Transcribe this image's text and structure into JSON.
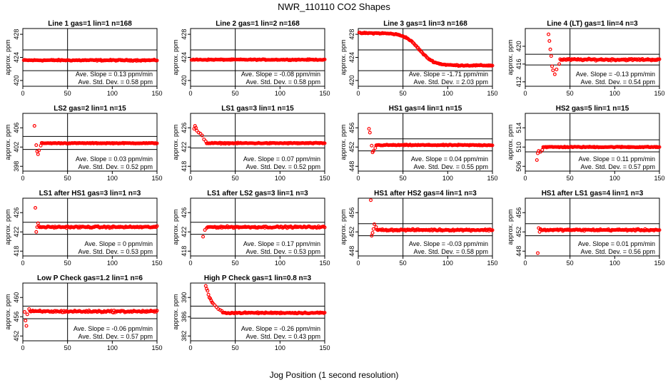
{
  "figure": {
    "title": "NWR_110110  CO2 Shapes",
    "xlabel": "Jog Position (1 second resolution)"
  },
  "chart_data": [
    {
      "type": "scatter",
      "title": "Line 1 gas=1 lin=1 n=168",
      "ylabel": "approx. ppm",
      "xlim": [
        0,
        150
      ],
      "ylim": [
        419,
        429
      ],
      "yticks": [
        420,
        424,
        428
      ],
      "xticks": [
        0,
        50,
        100,
        150
      ],
      "hlines": [
        425.3,
        421.7
      ],
      "vline": 50,
      "slope_label": "Ave. Slope =",
      "slope": "0.13",
      "slope_units": "ppm/min",
      "sd_label": "Ave. Std. Dev. =",
      "sd": "0.58",
      "sd_units": "ppm",
      "shape": {
        "kind": "flat",
        "start": 1,
        "level": 423.5,
        "noise": 0.15
      }
    },
    {
      "type": "scatter",
      "title": "Line 2 gas=1 lin=2 n=168",
      "ylabel": "approx. ppm",
      "xlim": [
        0,
        150
      ],
      "ylim": [
        419,
        429
      ],
      "yticks": [
        420,
        424,
        428
      ],
      "xticks": [
        0,
        50,
        100,
        150
      ],
      "hlines": [
        425.3,
        421.7
      ],
      "vline": 50,
      "slope_label": "Ave. Slope =",
      "slope": "-0.08",
      "slope_units": "ppm/min",
      "sd_label": "Ave. Std. Dev. =",
      "sd": "0.58",
      "sd_units": "ppm",
      "shape": {
        "kind": "flat",
        "start": 1,
        "level": 423.6,
        "noise": 0.12
      }
    },
    {
      "type": "scatter",
      "title": "Line 3 gas=1 lin=3 n=168",
      "ylabel": "approx. ppm",
      "xlim": [
        0,
        150
      ],
      "ylim": [
        419,
        429
      ],
      "yticks": [
        420,
        424,
        428
      ],
      "xticks": [
        0,
        50,
        100,
        150
      ],
      "hlines": [
        425.3,
        421.7
      ],
      "vline": 50,
      "slope_label": "Ave. Slope =",
      "slope": "-1.71",
      "slope_units": "ppm/min",
      "sd_label": "Ave. Std. Dev. =",
      "sd": "2.03",
      "sd_units": "ppm",
      "shape": {
        "kind": "sigmoid",
        "start": 1,
        "high": 428.2,
        "low": 422.6,
        "mid": 68,
        "width": 8,
        "noise": 0.15
      }
    },
    {
      "type": "scatter",
      "title": "Line 4 (LT) gas=1 lin=4 n=3",
      "ylabel": "approx. ppm",
      "xlim": [
        0,
        150
      ],
      "ylim": [
        411,
        424
      ],
      "yticks": [
        412,
        416,
        420
      ],
      "xticks": [
        0,
        50,
        100,
        150
      ],
      "hlines": [
        418.2,
        415.8
      ],
      "vline": 50,
      "slope_label": "Ave. Slope =",
      "slope": "-0.13",
      "slope_units": "ppm/min",
      "sd_label": "Ave. Std. Dev. =",
      "sd": "0.54",
      "sd_units": "ppm",
      "shape": {
        "kind": "spike",
        "start": 26,
        "level": 417.0,
        "noise": 0.3,
        "spike": [
          [
            26,
            422.7
          ],
          [
            27,
            421.2
          ],
          [
            28,
            419.3
          ],
          [
            29,
            417.8
          ],
          [
            30,
            415.5
          ],
          [
            31,
            414.6
          ],
          [
            33,
            413.7
          ],
          [
            35,
            414.8
          ],
          [
            38,
            416.0
          ]
        ]
      }
    },
    {
      "type": "scatter",
      "title": "LS2 gas=2 lin=1 n=15",
      "ylabel": "approx. ppm",
      "xlim": [
        0,
        150
      ],
      "ylim": [
        397,
        409
      ],
      "yticks": [
        398,
        402,
        406
      ],
      "xticks": [
        0,
        50,
        100,
        150
      ],
      "hlines": [
        404.2,
        401.5
      ],
      "vline": 50,
      "slope_label": "Ave. Slope =",
      "slope": "0.03",
      "slope_units": "ppm/min",
      "sd_label": "Ave. Std. Dev. =",
      "sd": "0.52",
      "sd_units": "ppm",
      "shape": {
        "kind": "spike",
        "start": 13,
        "level": 402.8,
        "noise": 0.12,
        "spike": [
          [
            13,
            406.4
          ],
          [
            15,
            402.4
          ],
          [
            16,
            401.1
          ],
          [
            17,
            400.5
          ],
          [
            18,
            401.3
          ],
          [
            20,
            402.3
          ]
        ]
      }
    },
    {
      "type": "scatter",
      "title": "LS1 gas=3 lin=1 n=15",
      "ylabel": "approx. ppm",
      "xlim": [
        0,
        150
      ],
      "ylim": [
        417,
        429
      ],
      "yticks": [
        418,
        422,
        426
      ],
      "xticks": [
        0,
        50,
        100,
        150
      ],
      "hlines": [
        424.3,
        421.8
      ],
      "vline": 50,
      "slope_label": "Ave. Slope =",
      "slope": "0.07",
      "slope_units": "ppm/min",
      "sd_label": "Ave. Std. Dev. =",
      "sd": "0.52",
      "sd_units": "ppm",
      "shape": {
        "kind": "spike",
        "start": 4,
        "level": 422.8,
        "noise": 0.15,
        "spike": [
          [
            4,
            425.8
          ],
          [
            5,
            426.4
          ],
          [
            6,
            426.0
          ],
          [
            7,
            425.4
          ],
          [
            9,
            425.0
          ],
          [
            11,
            424.8
          ],
          [
            13,
            424.4
          ],
          [
            15,
            423.6
          ],
          [
            17,
            423.2
          ]
        ]
      }
    },
    {
      "type": "scatter",
      "title": "HS1 gas=4 lin=1 n=15",
      "ylabel": "approx. ppm",
      "xlim": [
        0,
        150
      ],
      "ylim": [
        447,
        459
      ],
      "yticks": [
        448,
        452,
        456
      ],
      "xticks": [
        0,
        50,
        100,
        150
      ],
      "hlines": [
        453.7,
        451.2
      ],
      "vline": 50,
      "slope_label": "Ave. Slope =",
      "slope": "0.04",
      "slope_units": "ppm/min",
      "sd_label": "Ave. Std. Dev. =",
      "sd": "0.55",
      "sd_units": "ppm",
      "shape": {
        "kind": "spike",
        "start": 12,
        "level": 452.4,
        "noise": 0.15,
        "spike": [
          [
            12,
            455.8
          ],
          [
            13,
            455.0
          ],
          [
            15,
            452.3
          ],
          [
            16,
            450.9
          ],
          [
            17,
            451.2
          ],
          [
            19,
            451.8
          ]
        ]
      }
    },
    {
      "type": "scatter",
      "title": "HS2 gas=5 lin=1 n=15",
      "ylabel": "approx. ppm",
      "xlim": [
        0,
        150
      ],
      "ylim": [
        505,
        517
      ],
      "yticks": [
        506,
        510,
        514
      ],
      "xticks": [
        0,
        50,
        100,
        150
      ],
      "hlines": [
        511.5,
        509.0
      ],
      "vline": 50,
      "slope_label": "Ave. Slope =",
      "slope": "0.11",
      "slope_units": "ppm/min",
      "sd_label": "Ave. Std. Dev. =",
      "sd": "0.57",
      "sd_units": "ppm",
      "shape": {
        "kind": "spike",
        "start": 13,
        "level": 510.0,
        "noise": 0.15,
        "spike": [
          [
            13,
            507.3
          ],
          [
            14,
            508.7
          ],
          [
            15,
            509.2
          ],
          [
            17,
            509.0
          ],
          [
            19,
            509.4
          ]
        ]
      }
    },
    {
      "type": "scatter",
      "title": "LS1 after HS1 gas=3 lin=1 n=3",
      "ylabel": "approx. ppm",
      "xlim": [
        0,
        150
      ],
      "ylim": [
        417,
        429
      ],
      "yticks": [
        418,
        422,
        426
      ],
      "xticks": [
        0,
        50,
        100,
        150
      ],
      "hlines": [
        424.0,
        421.5
      ],
      "vline": 50,
      "slope_label": "Ave. Slope =",
      "slope": "0",
      "slope_units": "ppm/min",
      "sd_label": "Ave. Std. Dev. =",
      "sd": "0.53",
      "sd_units": "ppm",
      "shape": {
        "kind": "spike",
        "start": 14,
        "level": 423.0,
        "noise": 0.25,
        "spike": [
          [
            14,
            427.0
          ],
          [
            15,
            422.0
          ],
          [
            16,
            423.0
          ],
          [
            17,
            423.8
          ]
        ]
      }
    },
    {
      "type": "scatter",
      "title": "LS1 after LS2 gas=3 lin=1 n=3",
      "ylabel": "approx. ppm",
      "xlim": [
        0,
        150
      ],
      "ylim": [
        417,
        429
      ],
      "yticks": [
        418,
        422,
        426
      ],
      "xticks": [
        0,
        50,
        100,
        150
      ],
      "hlines": [
        424.0,
        421.5
      ],
      "vline": 50,
      "slope_label": "Ave. Slope =",
      "slope": "0.17",
      "slope_units": "ppm/min",
      "sd_label": "Ave. Std. Dev. =",
      "sd": "0.53",
      "sd_units": "ppm",
      "shape": {
        "kind": "spike",
        "start": 14,
        "level": 423.0,
        "noise": 0.25,
        "spike": [
          [
            14,
            421.0
          ],
          [
            16,
            422.4
          ],
          [
            18,
            422.8
          ]
        ]
      }
    },
    {
      "type": "scatter",
      "title": "HS1 after HS2 gas=4 lin=1 n=3",
      "ylabel": "approx. ppm",
      "xlim": [
        0,
        150
      ],
      "ylim": [
        447,
        459
      ],
      "yticks": [
        448,
        452,
        456
      ],
      "xticks": [
        0,
        50,
        100,
        150
      ],
      "hlines": [
        453.7,
        451.2
      ],
      "vline": 50,
      "slope_label": "Ave. Slope =",
      "slope": "-0.03",
      "slope_units": "ppm/min",
      "sd_label": "Ave. Std. Dev. =",
      "sd": "0.58",
      "sd_units": "ppm",
      "shape": {
        "kind": "spike",
        "start": 14,
        "level": 452.4,
        "noise": 0.25,
        "spike": [
          [
            14,
            458.6
          ],
          [
            15,
            451.2
          ],
          [
            16,
            451.8
          ],
          [
            17,
            452.6
          ],
          [
            18,
            453.6
          ],
          [
            20,
            453.0
          ]
        ]
      }
    },
    {
      "type": "scatter",
      "title": "HS1 after LS1 gas=4 lin=1 n=3",
      "ylabel": "approx. ppm",
      "xlim": [
        0,
        150
      ],
      "ylim": [
        447,
        459
      ],
      "yticks": [
        448,
        452,
        456
      ],
      "xticks": [
        0,
        50,
        100,
        150
      ],
      "hlines": [
        453.7,
        451.2
      ],
      "vline": 50,
      "slope_label": "Ave. Slope =",
      "slope": "0.01",
      "slope_units": "ppm/min",
      "sd_label": "Ave. Std. Dev. =",
      "sd": "0.56",
      "sd_units": "ppm",
      "shape": {
        "kind": "spike",
        "start": 14,
        "level": 452.4,
        "noise": 0.25,
        "spike": [
          [
            14,
            447.6
          ],
          [
            15,
            452.8
          ],
          [
            16,
            452.0
          ],
          [
            17,
            452.6
          ]
        ]
      }
    },
    {
      "type": "scatter",
      "title": "Low P Check gas=1.2 lin=1 n=6",
      "ylabel": "approx. ppm",
      "xlim": [
        0,
        150
      ],
      "ylim": [
        451,
        463
      ],
      "yticks": [
        452,
        456,
        460
      ],
      "xticks": [
        0,
        50,
        100,
        150
      ],
      "hlines": [
        458.2,
        455.6
      ],
      "vline": 50,
      "slope_label": "Ave. Slope =",
      "slope": "-0.06",
      "slope_units": "ppm/min",
      "sd_label": "Ave. Std. Dev. =",
      "sd": "0.57",
      "sd_units": "ppm",
      "shape": {
        "kind": "spike",
        "start": 2,
        "level": 457.1,
        "noise": 0.3,
        "spike": [
          [
            2,
            457.0
          ],
          [
            3,
            455.2
          ],
          [
            4,
            454.1
          ],
          [
            5,
            456.5
          ],
          [
            7,
            457.6
          ]
        ]
      }
    },
    {
      "type": "scatter",
      "title": "High P Check gas=1 lin=0.8 n=3",
      "ylabel": "approx. ppm",
      "xlim": [
        0,
        150
      ],
      "ylim": [
        381,
        393
      ],
      "yticks": [
        382,
        386,
        390
      ],
      "xticks": [
        0,
        50,
        100,
        150
      ],
      "hlines": [
        388.2,
        385.7
      ],
      "vline": 50,
      "slope_label": "Ave. Slope =",
      "slope": "-0.26",
      "slope_units": "ppm/min",
      "sd_label": "Ave. Std. Dev. =",
      "sd": "0.43",
      "sd_units": "ppm",
      "shape": {
        "kind": "spike",
        "start": 17,
        "level": 386.8,
        "noise": 0.2,
        "spike": [
          [
            17,
            392.4
          ],
          [
            18,
            391.8
          ],
          [
            19,
            391.4
          ],
          [
            20,
            390.6
          ],
          [
            21,
            390.0
          ],
          [
            22,
            389.8
          ],
          [
            23,
            389.4
          ],
          [
            24,
            389.0
          ],
          [
            25,
            388.8
          ],
          [
            27,
            388.4
          ],
          [
            29,
            388.0
          ],
          [
            31,
            387.6
          ],
          [
            33,
            387.4
          ],
          [
            35,
            387.2
          ]
        ]
      }
    }
  ]
}
